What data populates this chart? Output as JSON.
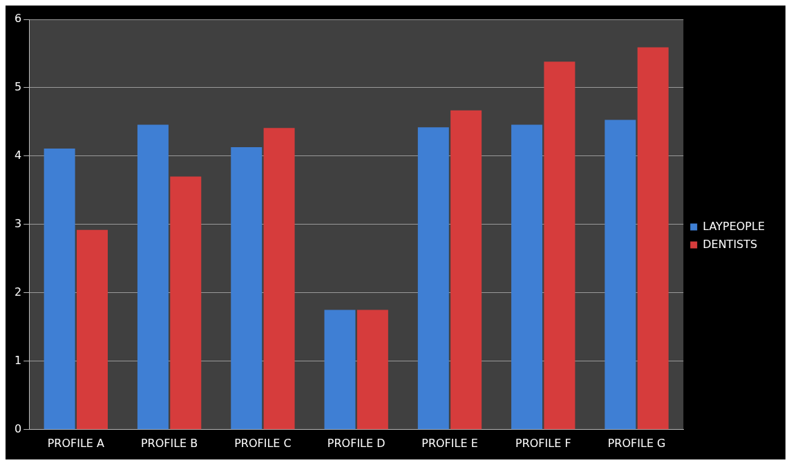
{
  "chart_data": {
    "type": "bar",
    "categories": [
      "PROFILE A",
      "PROFILE B",
      "PROFILE C",
      "PROFILE D",
      "PROFILE E",
      "PROFILE F",
      "PROFILE G"
    ],
    "series": [
      {
        "name": "LAYPEOPLE",
        "color": "#3f7fd4",
        "values": [
          4.11,
          4.46,
          4.13,
          1.75,
          4.42,
          4.46,
          4.53
        ]
      },
      {
        "name": "DENTISTS",
        "color": "#d63c3c",
        "values": [
          2.92,
          3.7,
          4.41,
          1.75,
          4.67,
          5.38,
          5.59
        ]
      }
    ],
    "ylim": [
      0,
      6
    ],
    "yticks": [
      0,
      1,
      2,
      3,
      4,
      5,
      6
    ],
    "grid": "y",
    "legend": "right"
  }
}
